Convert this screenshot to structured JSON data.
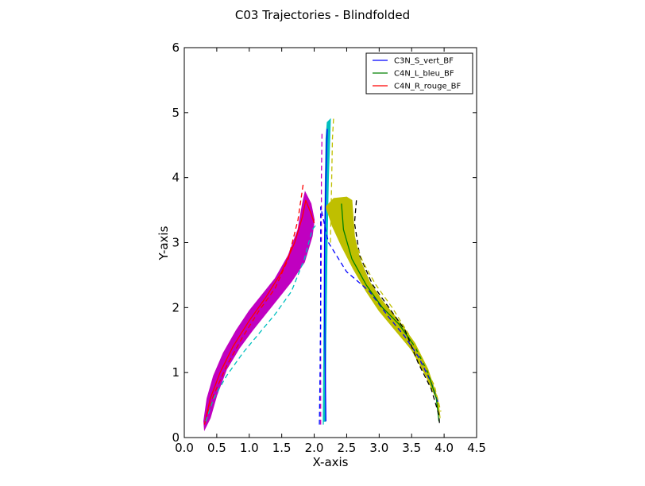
{
  "chart_data": {
    "type": "line",
    "title": "C03 Trajectories - Blindfolded",
    "xlabel": "X-axis",
    "ylabel": "Y-axis",
    "xlim": [
      0.0,
      4.5
    ],
    "ylim": [
      0,
      6
    ],
    "xticks": [
      "0.0",
      "0.5",
      "1.0",
      "1.5",
      "2.0",
      "2.5",
      "3.0",
      "3.5",
      "4.0",
      "4.5"
    ],
    "yticks": [
      "0",
      "1",
      "2",
      "3",
      "4",
      "5",
      "6"
    ],
    "grid": false,
    "legend_position": "top-right",
    "legend": [
      {
        "label": "C3N_S_vert_BF",
        "color": "#0000ff"
      },
      {
        "label": "C4N_L_bleu_BF",
        "color": "#008000"
      },
      {
        "label": "C4N_R_rouge_BF",
        "color": "#ff0000"
      }
    ],
    "bands": [
      {
        "color": "#c000c0",
        "upper": [
          [
            0.3,
            0.25
          ],
          [
            0.35,
            0.6
          ],
          [
            0.45,
            0.95
          ],
          [
            0.6,
            1.3
          ],
          [
            0.8,
            1.65
          ],
          [
            1.0,
            1.95
          ],
          [
            1.2,
            2.2
          ],
          [
            1.4,
            2.45
          ],
          [
            1.6,
            2.8
          ],
          [
            1.75,
            3.2
          ],
          [
            1.82,
            3.6
          ],
          [
            1.86,
            3.78
          ],
          [
            1.95,
            3.6
          ],
          [
            2.0,
            3.35
          ]
        ],
        "lower": [
          [
            2.0,
            3.35
          ],
          [
            1.97,
            3.1
          ],
          [
            1.85,
            2.7
          ],
          [
            1.65,
            2.4
          ],
          [
            1.45,
            2.15
          ],
          [
            1.25,
            1.9
          ],
          [
            1.05,
            1.65
          ],
          [
            0.85,
            1.38
          ],
          [
            0.65,
            1.05
          ],
          [
            0.5,
            0.65
          ],
          [
            0.4,
            0.3
          ],
          [
            0.31,
            0.12
          ]
        ]
      },
      {
        "color": "#00bfbf",
        "upper": [
          [
            2.15,
            0.25
          ],
          [
            2.15,
            1.5
          ],
          [
            2.16,
            3.0
          ],
          [
            2.17,
            4.0
          ],
          [
            2.18,
            4.6
          ],
          [
            2.2,
            4.85
          ],
          [
            2.25,
            4.9
          ]
        ],
        "lower": [
          [
            2.25,
            4.9
          ],
          [
            2.24,
            4.6
          ],
          [
            2.22,
            4.0
          ],
          [
            2.2,
            3.0
          ],
          [
            2.18,
            1.5
          ],
          [
            2.17,
            0.25
          ]
        ]
      },
      {
        "color": "#bfbf00",
        "upper": [
          [
            2.18,
            3.55
          ],
          [
            2.3,
            3.68
          ],
          [
            2.5,
            3.7
          ],
          [
            2.58,
            3.65
          ],
          [
            2.62,
            3.1
          ],
          [
            2.7,
            2.75
          ],
          [
            2.85,
            2.4
          ],
          [
            3.05,
            2.1
          ],
          [
            3.3,
            1.8
          ],
          [
            3.55,
            1.45
          ],
          [
            3.75,
            1.05
          ],
          [
            3.9,
            0.6
          ],
          [
            3.94,
            0.3
          ]
        ],
        "lower": [
          [
            3.94,
            0.3
          ],
          [
            3.88,
            0.6
          ],
          [
            3.72,
            0.95
          ],
          [
            3.5,
            1.35
          ],
          [
            3.25,
            1.65
          ],
          [
            3.0,
            1.95
          ],
          [
            2.8,
            2.25
          ],
          [
            2.6,
            2.6
          ],
          [
            2.42,
            2.95
          ],
          [
            2.28,
            3.25
          ],
          [
            2.18,
            3.55
          ]
        ]
      }
    ],
    "series": [
      {
        "color": "#ff0000",
        "dash": false,
        "values": [
          [
            0.31,
            0.2
          ],
          [
            0.4,
            0.6
          ],
          [
            0.55,
            1.0
          ],
          [
            0.75,
            1.4
          ],
          [
            1.0,
            1.8
          ],
          [
            1.25,
            2.15
          ],
          [
            1.5,
            2.55
          ],
          [
            1.7,
            3.0
          ],
          [
            1.82,
            3.4
          ],
          [
            1.87,
            3.65
          ],
          [
            1.95,
            3.45
          ],
          [
            2.0,
            3.3
          ]
        ]
      },
      {
        "color": "#ff0000",
        "dash": true,
        "values": [
          [
            0.32,
            0.25
          ],
          [
            0.45,
            0.65
          ],
          [
            0.65,
            1.1
          ],
          [
            0.9,
            1.55
          ],
          [
            1.15,
            1.95
          ],
          [
            1.4,
            2.3
          ],
          [
            1.6,
            2.75
          ],
          [
            1.75,
            3.35
          ],
          [
            1.83,
            3.9
          ]
        ]
      },
      {
        "color": "#00bfbf",
        "dash": true,
        "values": [
          [
            0.33,
            0.25
          ],
          [
            0.45,
            0.6
          ],
          [
            0.65,
            0.95
          ],
          [
            0.9,
            1.3
          ],
          [
            1.15,
            1.6
          ],
          [
            1.4,
            1.9
          ],
          [
            1.65,
            2.25
          ],
          [
            1.85,
            2.75
          ],
          [
            1.97,
            3.2
          ],
          [
            2.05,
            3.3
          ]
        ]
      },
      {
        "color": "#c000c0",
        "dash": true,
        "values": [
          [
            2.1,
            0.2
          ],
          [
            2.1,
            1.0
          ],
          [
            2.1,
            2.0
          ],
          [
            2.11,
            3.0
          ],
          [
            2.11,
            4.0
          ],
          [
            2.12,
            4.7
          ]
        ]
      },
      {
        "color": "#00bfbf",
        "dash": false,
        "values": [
          [
            2.14,
            0.2
          ],
          [
            2.15,
            1.5
          ],
          [
            2.16,
            3.0
          ],
          [
            2.18,
            4.0
          ],
          [
            2.21,
            4.65
          ],
          [
            2.24,
            4.8
          ]
        ]
      },
      {
        "color": "#bfbf00",
        "dash": true,
        "values": [
          [
            2.25,
            3.0
          ],
          [
            2.27,
            4.0
          ],
          [
            2.28,
            4.6
          ],
          [
            2.3,
            4.95
          ]
        ]
      },
      {
        "color": "#0000ff",
        "dash": false,
        "values": [
          [
            2.18,
            0.25
          ],
          [
            2.17,
            1.0
          ],
          [
            2.16,
            2.0
          ],
          [
            2.16,
            3.0
          ],
          [
            2.18,
            4.0
          ],
          [
            2.2,
            4.75
          ]
        ]
      },
      {
        "color": "#0000ff",
        "dash": true,
        "values": [
          [
            2.08,
            0.2
          ],
          [
            2.09,
            1.0
          ],
          [
            2.1,
            2.0
          ],
          [
            2.1,
            2.8
          ],
          [
            2.1,
            3.55
          ],
          [
            2.22,
            3.0
          ],
          [
            2.5,
            2.55
          ],
          [
            2.85,
            2.25
          ],
          [
            3.15,
            1.85
          ],
          [
            3.4,
            1.55
          ],
          [
            3.6,
            1.25
          ],
          [
            3.8,
            0.85
          ],
          [
            3.92,
            0.5
          ]
        ]
      },
      {
        "color": "#008000",
        "dash": false,
        "values": [
          [
            2.42,
            3.6
          ],
          [
            2.45,
            3.2
          ],
          [
            2.58,
            2.75
          ],
          [
            2.8,
            2.35
          ],
          [
            3.05,
            2.0
          ],
          [
            3.3,
            1.75
          ],
          [
            3.55,
            1.4
          ],
          [
            3.75,
            1.0
          ],
          [
            3.88,
            0.6
          ],
          [
            3.92,
            0.25
          ]
        ]
      },
      {
        "color": "#000000",
        "dash": true,
        "values": [
          [
            2.65,
            3.65
          ],
          [
            2.62,
            3.3
          ],
          [
            2.7,
            2.8
          ],
          [
            2.9,
            2.35
          ],
          [
            3.15,
            2.0
          ],
          [
            3.4,
            1.65
          ],
          [
            3.6,
            1.15
          ],
          [
            3.8,
            0.75
          ],
          [
            3.92,
            0.35
          ],
          [
            3.93,
            0.2
          ]
        ]
      },
      {
        "color": "#bfbf00",
        "dash": true,
        "values": [
          [
            2.58,
            3.5
          ],
          [
            2.6,
            3.1
          ],
          [
            2.75,
            2.7
          ],
          [
            2.95,
            2.35
          ],
          [
            3.2,
            2.0
          ],
          [
            3.45,
            1.6
          ],
          [
            3.65,
            1.2
          ],
          [
            3.85,
            0.8
          ],
          [
            3.95,
            0.4
          ]
        ]
      }
    ]
  }
}
